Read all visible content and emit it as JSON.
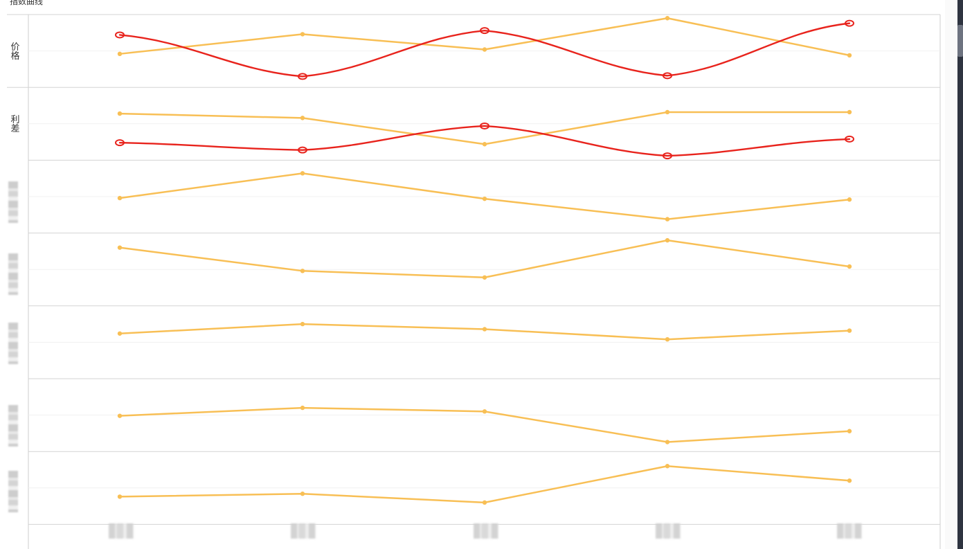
{
  "chart_data": {
    "type": "line",
    "title": "指数曲线",
    "categories": [
      "",
      "",
      "",
      "",
      ""
    ],
    "panels": [
      {
        "label": "价格",
        "series": [
          {
            "color": "#f8bf55",
            "values": [
              0.46,
              0.73,
              0.52,
              0.95,
              0.44
            ]
          },
          {
            "color": "#e8231c",
            "style": "hand-drawn",
            "values": [
              0.72,
              0.15,
              0.78,
              0.16,
              0.88
            ]
          }
        ]
      },
      {
        "label": "利差",
        "series": [
          {
            "color": "#f8bf55",
            "values": [
              0.64,
              0.58,
              0.22,
              0.66,
              0.66
            ]
          },
          {
            "color": "#e8231c",
            "style": "hand-drawn",
            "values": [
              0.24,
              0.14,
              0.47,
              0.06,
              0.29
            ]
          }
        ]
      },
      {
        "label": "",
        "series": [
          {
            "color": "#f8bf55",
            "values": [
              0.48,
              0.82,
              0.47,
              0.19,
              0.46
            ]
          }
        ]
      },
      {
        "label": "",
        "series": [
          {
            "color": "#f8bf55",
            "values": [
              0.8,
              0.48,
              0.39,
              0.9,
              0.54
            ]
          }
        ]
      },
      {
        "label": "",
        "series": [
          {
            "color": "#f8bf55",
            "values": [
              0.62,
              0.75,
              0.68,
              0.54,
              0.66
            ]
          }
        ]
      },
      {
        "label": "",
        "series": [
          {
            "color": "#f8bf55",
            "values": [
              0.49,
              0.6,
              0.55,
              0.13,
              0.28
            ]
          }
        ]
      },
      {
        "label": "",
        "series": [
          {
            "color": "#f8bf55",
            "values": [
              0.38,
              0.42,
              0.3,
              0.8,
              0.6
            ]
          }
        ]
      }
    ],
    "grid": true,
    "legend": "none"
  }
}
